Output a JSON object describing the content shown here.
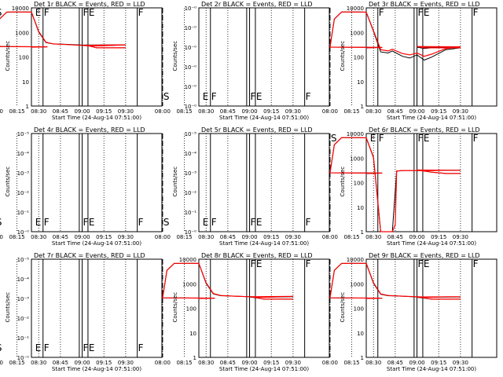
{
  "colors": {
    "background": "#ffffff",
    "events": "#000000",
    "lld": "#ff0000"
  },
  "layout_note": "3x3 grid of detector count-rate plots",
  "chart_data": [
    {
      "type": "line",
      "title": "Det 1r BLACK = Events, RED = LLD",
      "xlabel": "Start Time (24-Aug-14 07:51:00)",
      "ylabel": "Counts/sec",
      "x_ticks": [
        "08:00",
        "08:15",
        "08:30",
        "08:45",
        "09:00",
        "09:15",
        "09:30"
      ],
      "xlim_minutes": [
        7.85,
        9.55
      ],
      "y_scale": "log",
      "y_ticks": [
        "1",
        "10",
        "100",
        "1000",
        "10000"
      ],
      "ylim": [
        1,
        15000
      ],
      "markers": [
        {
          "label": "E",
          "t": 7.87
        },
        {
          "label": "S",
          "t": 8.0
        },
        {
          "label": "F",
          "t": 8.33
        },
        {
          "label": "F",
          "t": 8.98
        },
        {
          "label": "F",
          "t": 9.0
        },
        {
          "label": "E",
          "t": 9.04
        }
      ],
      "series": [
        {
          "name": "Events",
          "color": "#000000",
          "x": [
            7.85,
            7.96,
            8.0,
            8.03,
            8.08,
            8.15,
            8.2,
            8.25,
            8.3,
            8.35,
            8.4,
            8.5,
            8.6,
            8.7,
            8.8,
            8.9,
            9.0,
            9.05,
            9.1,
            9.2,
            9.3
          ],
          "y": [
            320,
            330,
            340,
            5000,
            9800,
            10000,
            10000,
            9900,
            1400,
            500,
            440,
            420,
            390,
            360,
            380,
            400,
            390,
            360,
            300,
            300,
            300
          ]
        },
        {
          "name": "LLD",
          "color": "#ff0000",
          "x": [
            7.85,
            7.96,
            8.0,
            8.03,
            8.08,
            8.15,
            8.2,
            8.25,
            8.3,
            8.35,
            8.4,
            8.5,
            8.6,
            8.7,
            8.8,
            8.9,
            9.0,
            9.05,
            9.1,
            9.2,
            9.3
          ],
          "y": [
            320,
            330,
            340,
            5000,
            10000,
            10000,
            10000,
            9900,
            1500,
            520,
            440,
            410,
            380,
            360,
            380,
            400,
            380,
            360,
            300,
            300,
            300
          ]
        }
      ]
    },
    {
      "type": "line",
      "title": "Det 2r BLACK = Events, RED = LLD",
      "xlabel": "Start Time (24-Aug-14 07:51:00)",
      "ylabel": "Counts/sec",
      "x_ticks": [
        "08:00",
        "08:15",
        "08:30",
        "08:45",
        "09:00",
        "09:15",
        "09:30"
      ],
      "xlim_minutes": [
        7.85,
        9.55
      ],
      "y_scale": "log",
      "y_ticks": [
        "10⁻⁰",
        "10⁻⁰",
        "10⁻⁰",
        "10⁻⁰",
        "10⁻⁰",
        "10⁻⁰"
      ],
      "ylim": [
        1,
        100000.0
      ],
      "markers": [
        {
          "label": "E",
          "t": 7.87
        },
        {
          "label": "S",
          "t": 8.0
        },
        {
          "label": "F",
          "t": 8.33
        },
        {
          "label": "F",
          "t": 8.98
        },
        {
          "label": "F",
          "t": 9.0
        },
        {
          "label": "E",
          "t": 9.04
        }
      ],
      "series": []
    },
    {
      "type": "line",
      "title": "Det 3r BLACK = Events, RED = LLD",
      "xlabel": "Start Time (24-Aug-14 07:51:00)",
      "ylabel": "Counts/sec",
      "x_ticks": [
        "08:00",
        "08:15",
        "08:30",
        "08:45",
        "09:00",
        "09:15",
        "09:30"
      ],
      "xlim_minutes": [
        7.85,
        9.55
      ],
      "y_scale": "log",
      "y_ticks": [
        "1",
        "10",
        "100",
        "1000",
        "10000"
      ],
      "ylim": [
        1,
        15000
      ],
      "markers": [
        {
          "label": "F",
          "t": 8.33
        },
        {
          "label": "F",
          "t": 8.98
        },
        {
          "label": "F",
          "t": 9.0
        },
        {
          "label": "E",
          "t": 9.04
        }
      ],
      "series": [
        {
          "name": "Events",
          "color": "#000000",
          "x": [
            7.85,
            7.96,
            8.0,
            8.03,
            8.08,
            8.15,
            8.2,
            8.25,
            8.3,
            8.35,
            8.4,
            8.43,
            8.5,
            8.55,
            8.6,
            8.65,
            8.7,
            8.8,
            8.9,
            9.0,
            9.05,
            9.1,
            9.2,
            9.3
          ],
          "y": [
            300,
            310,
            320,
            5000,
            10000,
            10000,
            10000,
            9800,
            1500,
            200,
            180,
            220,
            130,
            110,
            150,
            90,
            120,
            250,
            300,
            320,
            280,
            300,
            300,
            300
          ]
        },
        {
          "name": "LLD",
          "color": "#ff0000",
          "x": [
            7.85,
            7.96,
            8.0,
            8.03,
            8.08,
            8.15,
            8.2,
            8.25,
            8.3,
            8.35,
            8.4,
            8.43,
            8.5,
            8.55,
            8.6,
            8.65,
            8.7,
            8.8,
            8.9,
            9.0,
            9.05,
            9.1,
            9.2,
            9.3
          ],
          "y": [
            300,
            310,
            320,
            5000,
            10000,
            10000,
            10000,
            9800,
            1600,
            250,
            220,
            260,
            170,
            150,
            180,
            130,
            160,
            280,
            330,
            340,
            300,
            300,
            300,
            300
          ]
        }
      ]
    },
    {
      "type": "line",
      "title": "Det 4r BLACK = Events, RED = LLD",
      "xlabel": "Start Time (24-Aug-14 07:51:00)",
      "ylabel": "Counts/sec",
      "x_ticks": [
        "08:00",
        "08:15",
        "08:30",
        "08:45",
        "09:00",
        "09:15",
        "09:30"
      ],
      "xlim_minutes": [
        7.85,
        9.55
      ],
      "y_scale": "log",
      "y_ticks": [
        "10⁻⁰",
        "10⁻¹",
        "10⁻²",
        "10⁻³",
        "10⁻⁴",
        "10⁻⁵"
      ],
      "ylim": [
        1,
        100000.0
      ],
      "markers": [
        {
          "label": "E",
          "t": 7.87
        },
        {
          "label": "S",
          "t": 8.0
        },
        {
          "label": "F",
          "t": 8.33
        },
        {
          "label": "F",
          "t": 8.98
        },
        {
          "label": "F",
          "t": 9.0
        },
        {
          "label": "E",
          "t": 9.04
        }
      ],
      "series": []
    },
    {
      "type": "line",
      "title": "Det 5r BLACK = Events, RED = LLD",
      "xlabel": "Start Time (24-Aug-14 07:51:00)",
      "ylabel": "Counts/sec",
      "x_ticks": [
        "08:00",
        "08:15",
        "08:30",
        "08:45",
        "09:00",
        "09:15",
        "09:30"
      ],
      "xlim_minutes": [
        7.85,
        9.55
      ],
      "y_scale": "log",
      "y_ticks": [
        "10⁻⁰",
        "10⁻¹",
        "10⁻²",
        "10⁻³",
        "10⁻⁴",
        "10⁻⁵"
      ],
      "ylim": [
        1,
        100000.0
      ],
      "markers": [
        {
          "label": "E",
          "t": 7.87
        },
        {
          "label": "S",
          "t": 8.0
        },
        {
          "label": "F",
          "t": 8.33
        },
        {
          "label": "F",
          "t": 8.98
        },
        {
          "label": "F",
          "t": 9.0
        },
        {
          "label": "E",
          "t": 9.04
        }
      ],
      "series": []
    },
    {
      "type": "line",
      "title": "Det 6r BLACK = Events, RED = LLD",
      "xlabel": "Start Time (24-Aug-14 07:51:00)",
      "ylabel": "Counts/sec",
      "x_ticks": [
        "08:00",
        "08:15",
        "08:30",
        "08:45",
        "09:00",
        "09:15",
        "09:30"
      ],
      "xlim_minutes": [
        7.85,
        9.55
      ],
      "y_scale": "log",
      "y_ticks": [
        "1",
        "10",
        "100",
        "1000",
        "10000"
      ],
      "ylim": [
        1,
        15000
      ],
      "markers": [
        {
          "label": "E",
          "t": 7.87
        },
        {
          "label": "S",
          "t": 8.0
        },
        {
          "label": "F",
          "t": 8.33
        },
        {
          "label": "F",
          "t": 8.98
        },
        {
          "label": "F",
          "t": 9.0
        },
        {
          "label": "E",
          "t": 9.04
        }
      ],
      "series": [
        {
          "name": "Events",
          "color": "#000000",
          "x": [
            7.85,
            7.96,
            8.0,
            8.03,
            8.08,
            8.15,
            8.2,
            8.25,
            8.3,
            8.35,
            8.4,
            8.43,
            8.46,
            8.5,
            8.55,
            8.6,
            8.7,
            8.8,
            8.9,
            9.0,
            9.05,
            9.1,
            9.2,
            9.3
          ],
          "y": [
            300,
            310,
            320,
            5000,
            10000,
            10000,
            10000,
            9800,
            1400,
            1,
            1,
            1,
            380,
            400,
            400,
            400,
            400,
            410,
            410,
            420,
            380,
            340,
            300,
            300
          ]
        },
        {
          "name": "LLD",
          "color": "#ff0000",
          "x": [
            7.85,
            7.96,
            8.0,
            8.03,
            8.08,
            8.15,
            8.2,
            8.25,
            8.3,
            8.35,
            8.4,
            8.43,
            8.45,
            8.46,
            8.5,
            8.55,
            8.6,
            8.7,
            8.8,
            8.9,
            9.0,
            9.05,
            9.1,
            9.2,
            9.3
          ],
          "y": [
            300,
            310,
            320,
            5000,
            10000,
            10000,
            10000,
            9800,
            1500,
            1,
            1,
            1,
            2,
            380,
            400,
            400,
            400,
            400,
            410,
            410,
            420,
            380,
            340,
            300,
            300
          ]
        }
      ]
    },
    {
      "type": "line",
      "title": "Det 7r BLACK = Events, RED = LLD",
      "xlabel": "Start Time (24-Aug-14 07:51:00)",
      "ylabel": "Counts/sec",
      "x_ticks": [
        "08:00",
        "08:15",
        "08:30",
        "08:45",
        "09:00",
        "09:15",
        "09:30"
      ],
      "xlim_minutes": [
        7.85,
        9.55
      ],
      "y_scale": "log",
      "y_ticks": [
        "10⁻⁰",
        "10⁻¹",
        "10⁻²",
        "10⁻³",
        "10⁻⁴",
        "10⁻⁵"
      ],
      "ylim": [
        1,
        100000.0
      ],
      "markers": [
        {
          "label": "E",
          "t": 7.87
        },
        {
          "label": "S",
          "t": 8.0
        },
        {
          "label": "F",
          "t": 8.33
        },
        {
          "label": "F",
          "t": 8.98
        },
        {
          "label": "F",
          "t": 9.0
        },
        {
          "label": "E",
          "t": 9.04
        }
      ],
      "series": []
    },
    {
      "type": "line",
      "title": "Det 8r BLACK = Events, RED = LLD",
      "xlabel": "Start Time (24-Aug-14 07:51:00)",
      "ylabel": "Counts/sec",
      "x_ticks": [
        "08:00",
        "08:15",
        "08:30",
        "08:45",
        "09:00",
        "09:15",
        "09:30"
      ],
      "xlim_minutes": [
        7.85,
        9.55
      ],
      "y_scale": "log",
      "y_ticks": [
        "1",
        "10",
        "100",
        "1000",
        "10000"
      ],
      "ylim": [
        1,
        15000
      ],
      "markers": [
        {
          "label": "F",
          "t": 8.98
        },
        {
          "label": "F",
          "t": 9.0
        },
        {
          "label": "E",
          "t": 9.04
        }
      ],
      "series": [
        {
          "name": "Events",
          "color": "#000000",
          "x": [
            7.85,
            7.96,
            8.0,
            8.03,
            8.08,
            8.15,
            8.2,
            8.25,
            8.3,
            8.35,
            8.4,
            8.5,
            8.6,
            8.7,
            8.8,
            8.9,
            9.0,
            9.05,
            9.1,
            9.2,
            9.3
          ],
          "y": [
            320,
            330,
            340,
            5000,
            9800,
            10000,
            10000,
            9900,
            1400,
            500,
            420,
            400,
            380,
            360,
            370,
            380,
            370,
            340,
            300,
            300,
            300
          ]
        },
        {
          "name": "LLD",
          "color": "#ff0000",
          "x": [
            7.85,
            7.96,
            8.0,
            8.03,
            8.08,
            8.15,
            8.2,
            8.25,
            8.3,
            8.35,
            8.4,
            8.5,
            8.6,
            8.7,
            8.8,
            8.9,
            9.0,
            9.05,
            9.1,
            9.2,
            9.3
          ],
          "y": [
            320,
            330,
            340,
            5000,
            10000,
            10000,
            10000,
            9900,
            1500,
            520,
            430,
            400,
            380,
            360,
            380,
            390,
            380,
            350,
            300,
            300,
            300
          ]
        }
      ]
    },
    {
      "type": "line",
      "title": "Det 9r BLACK = Events, RED = LLD",
      "xlabel": "Start Time (24-Aug-14 07:51:00)",
      "ylabel": "Counts/sec",
      "x_ticks": [
        "08:00",
        "08:15",
        "08:30",
        "08:45",
        "09:00",
        "09:15",
        "09:30"
      ],
      "xlim_minutes": [
        7.85,
        9.55
      ],
      "y_scale": "log",
      "y_ticks": [
        "1",
        "10",
        "100",
        "1000",
        "10000"
      ],
      "ylim": [
        1,
        15000
      ],
      "markers": [
        {
          "label": "F",
          "t": 8.98
        },
        {
          "label": "F",
          "t": 9.0
        },
        {
          "label": "E",
          "t": 9.04
        }
      ],
      "series": [
        {
          "name": "Events",
          "color": "#000000",
          "x": [
            7.85,
            7.96,
            8.0,
            8.03,
            8.08,
            8.15,
            8.2,
            8.25,
            8.3,
            8.35,
            8.4,
            8.5,
            8.6,
            8.7,
            8.8,
            8.9,
            9.0,
            9.05,
            9.1,
            9.2,
            9.3
          ],
          "y": [
            320,
            330,
            340,
            5000,
            9800,
            10000,
            10000,
            9900,
            1400,
            480,
            420,
            400,
            370,
            360,
            370,
            370,
            360,
            330,
            300,
            300,
            300
          ]
        },
        {
          "name": "LLD",
          "color": "#ff0000",
          "x": [
            7.85,
            7.96,
            8.0,
            8.03,
            8.08,
            8.15,
            8.2,
            8.25,
            8.3,
            8.35,
            8.4,
            8.5,
            8.6,
            8.7,
            8.8,
            8.9,
            9.0,
            9.05,
            9.1,
            9.2,
            9.3
          ],
          "y": [
            320,
            330,
            340,
            5000,
            10000,
            10000,
            10000,
            9900,
            1500,
            500,
            430,
            400,
            380,
            360,
            380,
            380,
            370,
            340,
            300,
            300,
            300
          ]
        }
      ]
    }
  ]
}
